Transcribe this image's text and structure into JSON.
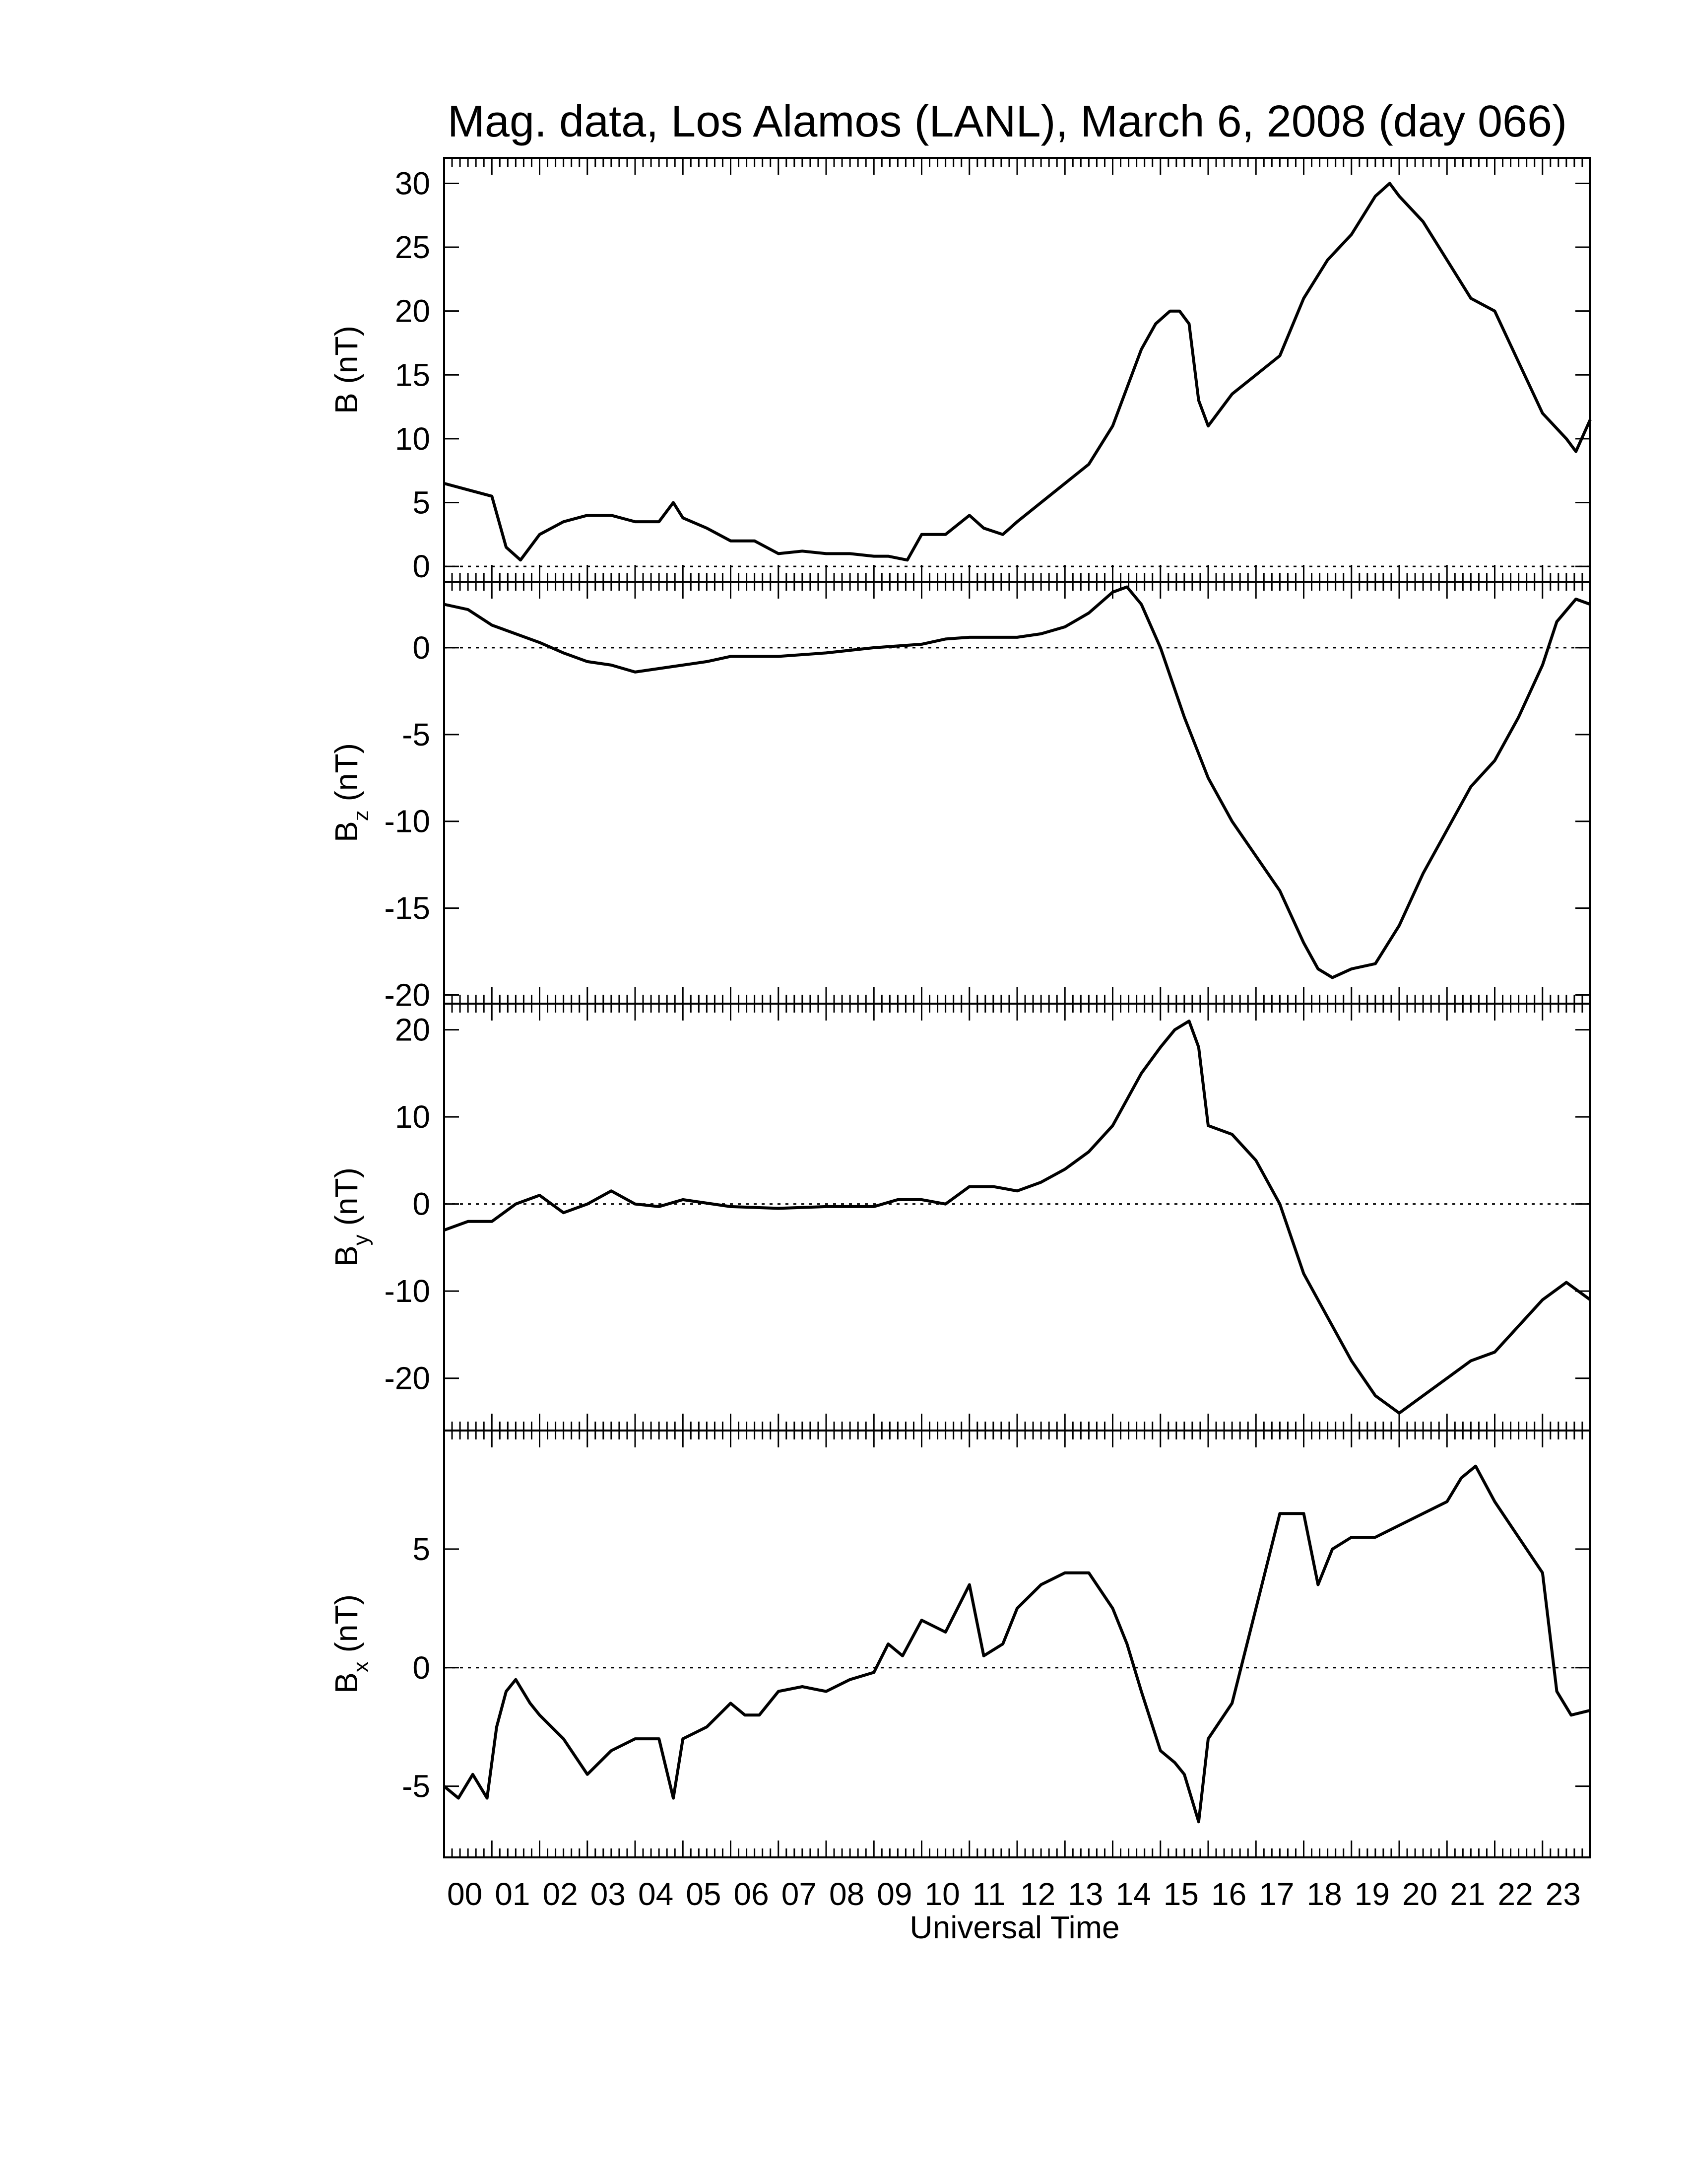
{
  "chart_data": {
    "type": "line",
    "title": "Mag. data, Los Alamos (LANL), March 6, 2008 (day 066)",
    "xlabel": "Universal Time",
    "xlim": [
      0,
      24
    ],
    "x_tick_labels": [
      "00",
      "01",
      "02",
      "03",
      "04",
      "05",
      "06",
      "07",
      "08",
      "09",
      "10",
      "11",
      "12",
      "13",
      "14",
      "15",
      "16",
      "17",
      "18",
      "19",
      "20",
      "21",
      "22",
      "23"
    ],
    "grid": false,
    "zero_reference_line": "dotted",
    "panels": [
      {
        "ylabel_main": "B",
        "ylabel_sub": "",
        "ylabel_unit": " (nT)",
        "ylim": [
          -1.2,
          32
        ],
        "yticks": [
          0,
          5,
          10,
          15,
          20,
          25,
          30
        ],
        "ytick_labels": [
          "0",
          "5",
          "10",
          "15",
          "20",
          "25",
          "30"
        ],
        "x": [
          0,
          0.5,
          1,
          1.3,
          1.6,
          2,
          2.5,
          3,
          3.5,
          4,
          4.5,
          4.8,
          5,
          5.5,
          6,
          6.5,
          7,
          7.5,
          8,
          8.5,
          9,
          9.3,
          9.7,
          10,
          10.5,
          11,
          11.3,
          11.7,
          12,
          12.5,
          13,
          13.5,
          14,
          14.3,
          14.6,
          14.9,
          15.2,
          15.4,
          15.6,
          15.8,
          16,
          16.5,
          17,
          17.5,
          18,
          18.5,
          19,
          19.5,
          19.8,
          20,
          20.5,
          21,
          21.5,
          22,
          22.5,
          23,
          23.5,
          23.7,
          24
        ],
        "y": [
          6.5,
          6,
          5.5,
          1.5,
          0.5,
          2.5,
          3.5,
          4,
          4,
          3.5,
          3.5,
          5,
          3.8,
          3,
          2,
          2,
          1,
          1.2,
          1,
          1,
          0.8,
          0.8,
          0.5,
          2.5,
          2.5,
          4,
          3,
          2.5,
          3.5,
          5,
          6.5,
          8,
          11,
          14,
          17,
          19,
          20,
          20,
          19,
          13,
          11,
          13.5,
          15,
          16.5,
          21,
          24,
          26,
          29,
          30,
          29,
          27,
          24,
          21,
          20,
          16,
          12,
          10,
          9,
          11.5
        ]
      },
      {
        "ylabel_main": "B",
        "ylabel_sub": "z",
        "ylabel_unit": " (nT)",
        "ylim": [
          -20.5,
          3.8
        ],
        "yticks": [
          0,
          -5,
          -10,
          -15,
          -20
        ],
        "ytick_labels": [
          "0",
          "-5",
          "-10",
          "-15",
          "-20"
        ],
        "x": [
          0,
          0.5,
          1,
          1.5,
          2,
          2.5,
          3,
          3.5,
          4,
          4.5,
          5,
          5.5,
          6,
          7,
          8,
          9,
          10,
          10.5,
          11,
          12,
          12.5,
          13,
          13.5,
          14,
          14.3,
          14.6,
          15,
          15.5,
          16,
          16.5,
          17,
          17.5,
          18,
          18.3,
          18.6,
          19,
          19.5,
          20,
          20.5,
          21,
          21.5,
          22,
          22.5,
          23,
          23.3,
          23.7,
          24
        ],
        "y": [
          2.5,
          2.2,
          1.3,
          0.8,
          0.3,
          -0.3,
          -0.8,
          -1,
          -1.4,
          -1.2,
          -1,
          -0.8,
          -0.5,
          -0.5,
          -0.3,
          0,
          0.2,
          0.5,
          0.6,
          0.6,
          0.8,
          1.2,
          2,
          3.2,
          3.5,
          2.5,
          0,
          -4,
          -7.5,
          -10,
          -12,
          -14,
          -17,
          -18.5,
          -19,
          -18.5,
          -18.2,
          -16,
          -13,
          -10.5,
          -8,
          -6.5,
          -4,
          -1,
          1.5,
          2.8,
          2.5
        ]
      },
      {
        "ylabel_main": "B",
        "ylabel_sub": "y",
        "ylabel_unit": " (nT)",
        "ylim": [
          -26,
          23
        ],
        "yticks": [
          20,
          10,
          0,
          -10,
          -20
        ],
        "ytick_labels": [
          "20",
          "10",
          "0",
          "-10",
          "-20"
        ],
        "x": [
          0,
          0.5,
          1,
          1.5,
          2,
          2.5,
          3,
          3.5,
          4,
          4.5,
          5,
          6,
          7,
          8,
          9,
          9.5,
          10,
          10.5,
          11,
          11.5,
          12,
          12.5,
          13,
          13.5,
          14,
          14.3,
          14.6,
          15,
          15.3,
          15.6,
          15.8,
          16,
          16.5,
          17,
          17.5,
          18,
          18.5,
          19,
          19.5,
          20,
          20.5,
          21,
          21.5,
          22,
          22.5,
          23,
          23.5,
          24
        ],
        "y": [
          -3,
          -2,
          -2,
          0,
          1,
          -1,
          0,
          1.5,
          0,
          -0.3,
          0.5,
          -0.3,
          -0.5,
          -0.3,
          -0.3,
          0.5,
          0.5,
          0,
          2,
          2,
          1.5,
          2.5,
          4,
          6,
          9,
          12,
          15,
          18,
          20,
          21,
          18,
          9,
          8,
          5,
          0,
          -8,
          -13,
          -18,
          -22,
          -24,
          -22,
          -20,
          -18,
          -17,
          -14,
          -11,
          -9,
          -11
        ]
      },
      {
        "ylabel_main": "B",
        "ylabel_sub": "x",
        "ylabel_unit": " (nT)",
        "ylim": [
          -8,
          10
        ],
        "yticks": [
          5,
          0,
          -5
        ],
        "ytick_labels": [
          "5",
          "0",
          "-5"
        ],
        "x": [
          0,
          0.3,
          0.6,
          0.9,
          1.1,
          1.3,
          1.5,
          1.8,
          2,
          2.5,
          3,
          3.5,
          4,
          4.5,
          4.8,
          5,
          5.5,
          6,
          6.3,
          6.6,
          7,
          7.5,
          8,
          8.5,
          9,
          9.3,
          9.6,
          10,
          10.5,
          11,
          11.3,
          11.7,
          12,
          12.5,
          13,
          13.5,
          14,
          14.3,
          14.6,
          15,
          15.3,
          15.5,
          15.8,
          16,
          16.5,
          17,
          17.5,
          18,
          18.3,
          18.6,
          19,
          19.5,
          20,
          20.5,
          21,
          21.3,
          21.6,
          22,
          22.5,
          23,
          23.3,
          23.6,
          24
        ],
        "y": [
          -5,
          -5.5,
          -4.5,
          -5.5,
          -2.5,
          -1,
          -0.5,
          -1.5,
          -2,
          -3,
          -4.5,
          -3.5,
          -3,
          -3,
          -5.5,
          -3,
          -2.5,
          -1.5,
          -2,
          -2,
          -1,
          -0.8,
          -1,
          -0.5,
          -0.2,
          1,
          0.5,
          2,
          1.5,
          3.5,
          0.5,
          1,
          2.5,
          3.5,
          4,
          4,
          2.5,
          1,
          -1,
          -3.5,
          -4,
          -4.5,
          -6.5,
          -3,
          -1.5,
          2.5,
          6.5,
          6.5,
          3.5,
          5,
          5.5,
          5.5,
          6,
          6.5,
          7,
          8,
          8.5,
          7,
          5.5,
          4,
          -1,
          -2,
          -1.8
        ]
      }
    ]
  }
}
